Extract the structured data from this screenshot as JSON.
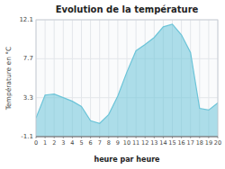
{
  "chart_data": {
    "type": "area",
    "title": "Evolution de la température",
    "x_label": "heure par heure",
    "y_label": "Température en °C",
    "x": [
      0,
      1,
      2,
      3,
      4,
      5,
      6,
      7,
      8,
      9,
      10,
      11,
      12,
      13,
      14,
      15,
      16,
      17,
      18,
      19,
      20
    ],
    "values": [
      1.0,
      3.6,
      3.7,
      3.3,
      2.9,
      2.3,
      0.7,
      0.4,
      1.4,
      3.5,
      6.2,
      8.6,
      9.3,
      10.1,
      11.3,
      11.6,
      10.4,
      8.4,
      2.1,
      1.9,
      2.7
    ],
    "xlim": [
      0,
      20
    ],
    "xticks": [
      0,
      1,
      2,
      3,
      4,
      5,
      6,
      7,
      8,
      9,
      10,
      11,
      12,
      13,
      14,
      15,
      16,
      17,
      18,
      19,
      20
    ],
    "ylim": [
      -1.1,
      12.1
    ],
    "yticks": [
      -1.1,
      3.3,
      7.7,
      12.1
    ],
    "color": "#6cc4d8",
    "grid": true
  }
}
